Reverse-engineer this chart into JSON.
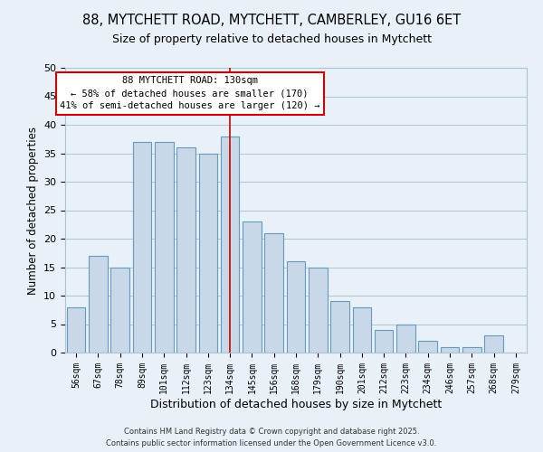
{
  "title": "88, MYTCHETT ROAD, MYTCHETT, CAMBERLEY, GU16 6ET",
  "subtitle": "Size of property relative to detached houses in Mytchett",
  "xlabel": "Distribution of detached houses by size in Mytchett",
  "ylabel": "Number of detached properties",
  "bar_labels": [
    "56sqm",
    "67sqm",
    "78sqm",
    "89sqm",
    "101sqm",
    "112sqm",
    "123sqm",
    "134sqm",
    "145sqm",
    "156sqm",
    "168sqm",
    "179sqm",
    "190sqm",
    "201sqm",
    "212sqm",
    "223sqm",
    "234sqm",
    "246sqm",
    "257sqm",
    "268sqm",
    "279sqm"
  ],
  "bar_values": [
    8,
    17,
    15,
    37,
    37,
    36,
    35,
    38,
    23,
    21,
    16,
    15,
    9,
    8,
    4,
    5,
    2,
    1,
    1,
    3,
    0
  ],
  "bar_color": "#c8d8e8",
  "bar_edge_color": "#6699bb",
  "vline_x": 7,
  "vline_color": "#cc0000",
  "annotation_title": "88 MYTCHETT ROAD: 130sqm",
  "annotation_line1": "← 58% of detached houses are smaller (170)",
  "annotation_line2": "41% of semi-detached houses are larger (120) →",
  "annotation_box_color": "#ffffff",
  "annotation_box_edge": "#cc0000",
  "ylim": [
    0,
    50
  ],
  "yticks": [
    0,
    5,
    10,
    15,
    20,
    25,
    30,
    35,
    40,
    45,
    50
  ],
  "grid_color": "#b0c4d8",
  "bg_color": "#e8f0f8",
  "footer1": "Contains HM Land Registry data © Crown copyright and database right 2025.",
  "footer2": "Contains public sector information licensed under the Open Government Licence v3.0.",
  "title_fontsize": 10.5,
  "subtitle_fontsize": 9,
  "xlabel_fontsize": 9,
  "ylabel_fontsize": 8.5,
  "annotation_fontsize": 7.5,
  "footer_fontsize": 6.0
}
